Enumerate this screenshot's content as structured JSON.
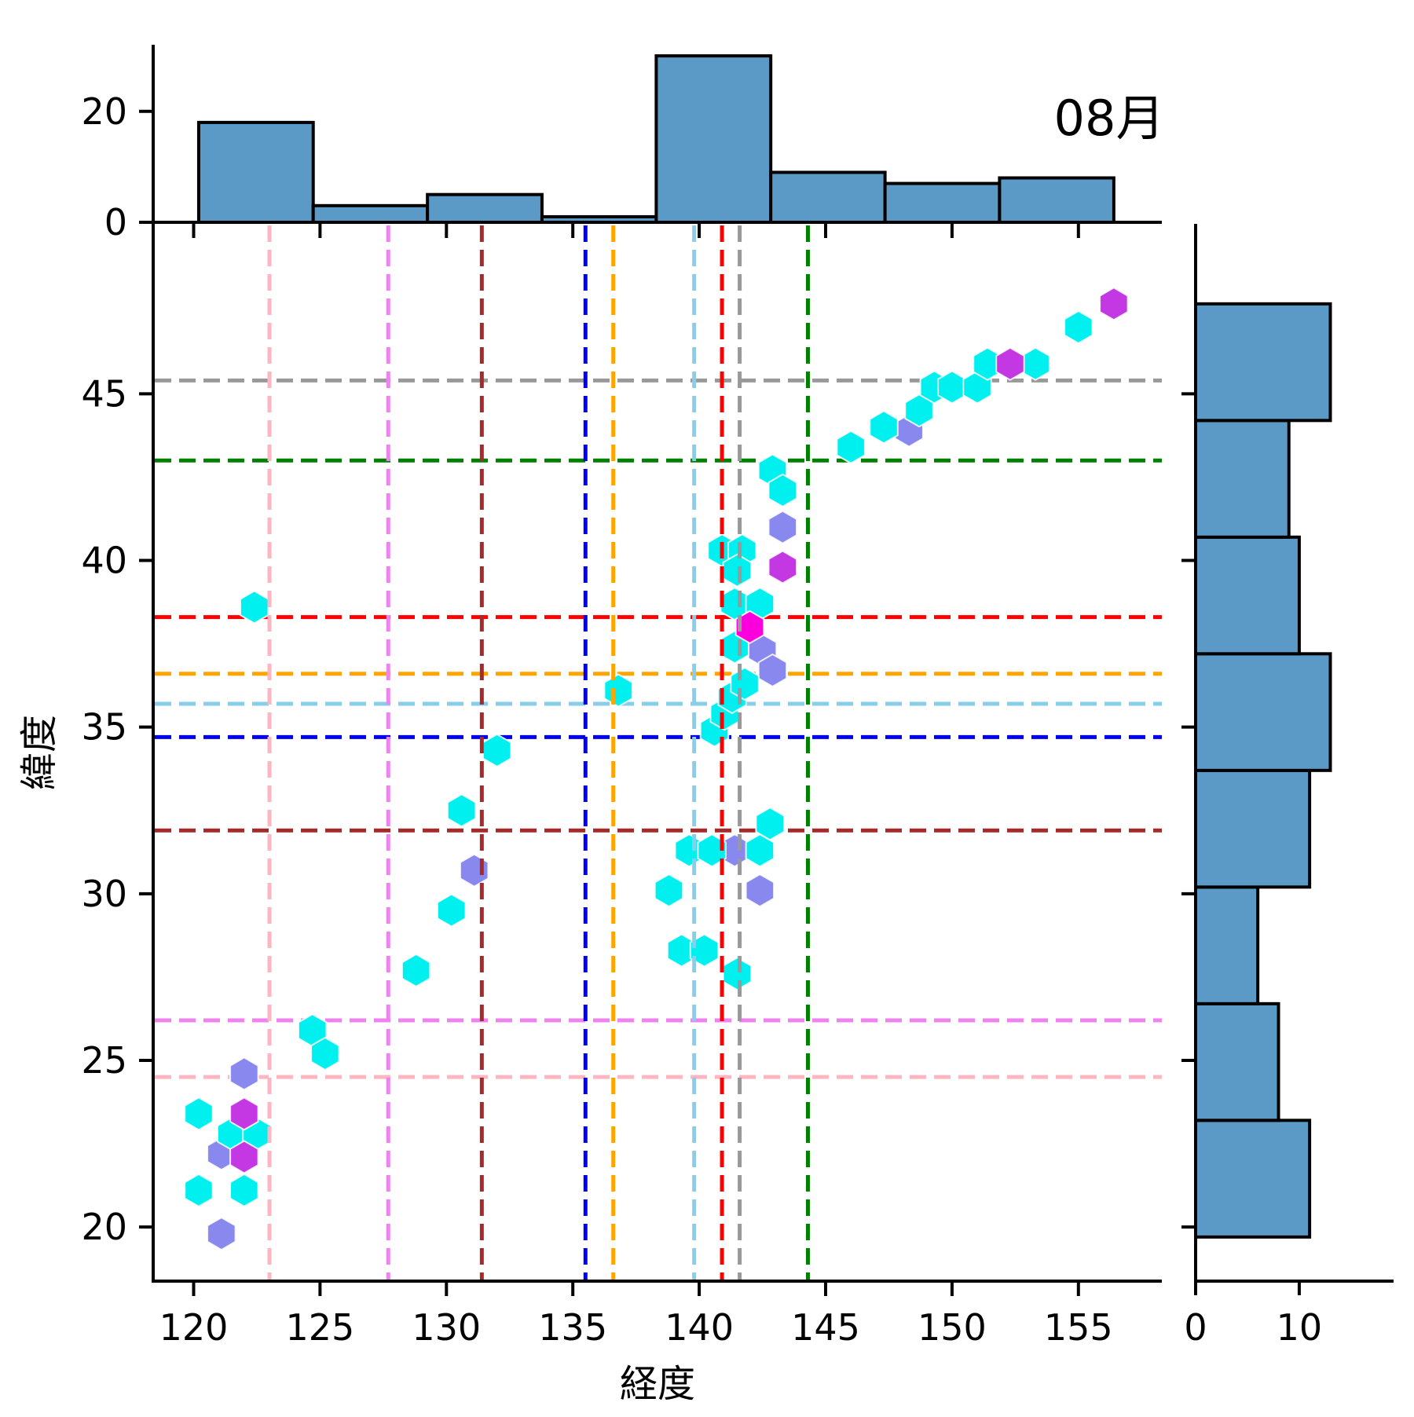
{
  "chart_data": {
    "type": "scatter",
    "title": "08月",
    "xlabel": "経度",
    "ylabel": "緯度",
    "xlim": [
      118.4,
      158.3
    ],
    "ylim": [
      18.4,
      50.1
    ],
    "x_ticks": [
      120,
      125,
      130,
      135,
      140,
      145,
      150,
      155
    ],
    "y_ticks": [
      20,
      25,
      30,
      35,
      40,
      45
    ],
    "grid": false,
    "legend": "none",
    "marker": "hexagon",
    "series": [
      {
        "name": "violet-hexagons",
        "color": "#8888ee",
        "points": [
          [
            122.0,
            24.6
          ],
          [
            121.1,
            22.2
          ],
          [
            121.1,
            19.8
          ],
          [
            131.1,
            30.7
          ],
          [
            141.4,
            31.3
          ],
          [
            142.4,
            30.1
          ],
          [
            142.5,
            37.3
          ],
          [
            142.9,
            36.7
          ],
          [
            143.3,
            41.0
          ],
          [
            148.3,
            43.9
          ]
        ]
      },
      {
        "name": "cyan-hexagons",
        "color": "#00efef",
        "points": [
          [
            120.2,
            23.4
          ],
          [
            121.5,
            22.8
          ],
          [
            122.5,
            22.8
          ],
          [
            120.2,
            21.1
          ],
          [
            122.0,
            21.1
          ],
          [
            124.7,
            25.9
          ],
          [
            125.2,
            25.2
          ],
          [
            128.8,
            27.7
          ],
          [
            122.4,
            38.6
          ],
          [
            130.2,
            29.5
          ],
          [
            130.6,
            32.5
          ],
          [
            132.0,
            34.3
          ],
          [
            136.8,
            36.1
          ],
          [
            139.6,
            31.3
          ],
          [
            140.5,
            31.3
          ],
          [
            142.4,
            31.3
          ],
          [
            142.8,
            32.1
          ],
          [
            138.8,
            30.1
          ],
          [
            139.3,
            28.3
          ],
          [
            140.2,
            28.3
          ],
          [
            141.5,
            27.6
          ],
          [
            140.6,
            34.9
          ],
          [
            141.0,
            35.4
          ],
          [
            141.3,
            35.9
          ],
          [
            141.8,
            36.3
          ],
          [
            141.4,
            37.4
          ],
          [
            141.4,
            38.7
          ],
          [
            142.4,
            38.7
          ],
          [
            140.9,
            40.3
          ],
          [
            141.7,
            40.3
          ],
          [
            141.5,
            39.7
          ],
          [
            142.9,
            42.7
          ],
          [
            143.3,
            42.1
          ],
          [
            146.0,
            43.4
          ],
          [
            147.3,
            44.0
          ],
          [
            148.7,
            44.5
          ],
          [
            149.3,
            45.2
          ],
          [
            150.0,
            45.2
          ],
          [
            151.0,
            45.2
          ],
          [
            151.4,
            45.9
          ],
          [
            153.3,
            45.9
          ],
          [
            155.0,
            47.0
          ]
        ]
      },
      {
        "name": "orchid-hexagons",
        "color": "#c438e4",
        "points": [
          [
            122.0,
            23.4
          ],
          [
            122.0,
            22.1
          ],
          [
            143.3,
            39.8
          ],
          [
            152.3,
            45.9
          ],
          [
            156.4,
            47.7
          ]
        ]
      },
      {
        "name": "magenta-hexagons",
        "color": "#fb00dc",
        "points": [
          [
            142.0,
            38.0
          ]
        ]
      }
    ],
    "reference_lines": [
      {
        "name": "pink",
        "color": "#ffb6c1",
        "lon": 123.0,
        "lat": 24.5
      },
      {
        "name": "violet",
        "color": "#ee82ee",
        "lon": 127.7,
        "lat": 26.2
      },
      {
        "name": "brown",
        "color": "#a52a2a",
        "lon": 131.4,
        "lat": 31.9
      },
      {
        "name": "blue",
        "color": "#0000ee",
        "lon": 135.5,
        "lat": 34.7
      },
      {
        "name": "orange",
        "color": "#ffa500",
        "lon": 136.6,
        "lat": 36.6
      },
      {
        "name": "skyblue",
        "color": "#87ceeb",
        "lon": 139.8,
        "lat": 35.7
      },
      {
        "name": "red",
        "color": "#ff0000",
        "lon": 140.9,
        "lat": 38.3
      },
      {
        "name": "gray",
        "color": "#999999",
        "lon": 141.6,
        "lat": 45.4
      },
      {
        "name": "green",
        "color": "#008000",
        "lon": 144.3,
        "lat": 43.0
      }
    ],
    "marginal_top_histogram": {
      "type": "bar",
      "orientation": "vertical",
      "bar_color": "#5b9ac6",
      "edge_color": "#000000",
      "bin_edges": [
        120.2,
        124.73,
        129.25,
        133.78,
        138.3,
        142.83,
        147.35,
        151.88,
        156.4
      ],
      "counts": [
        18,
        3,
        5,
        1,
        30,
        9,
        7,
        8
      ],
      "tick_values": [
        0,
        20
      ],
      "value_max": 32
    },
    "marginal_right_histogram": {
      "type": "bar",
      "orientation": "horizontal",
      "bar_color": "#5b9ac6",
      "edge_color": "#000000",
      "bin_edges": [
        19.7,
        23.2,
        26.7,
        30.2,
        33.7,
        37.2,
        40.7,
        44.2,
        47.7
      ],
      "counts": [
        11,
        8,
        6,
        11,
        13,
        10,
        9,
        13
      ],
      "tick_values": [
        0,
        10
      ],
      "value_max": 18.8
    }
  }
}
